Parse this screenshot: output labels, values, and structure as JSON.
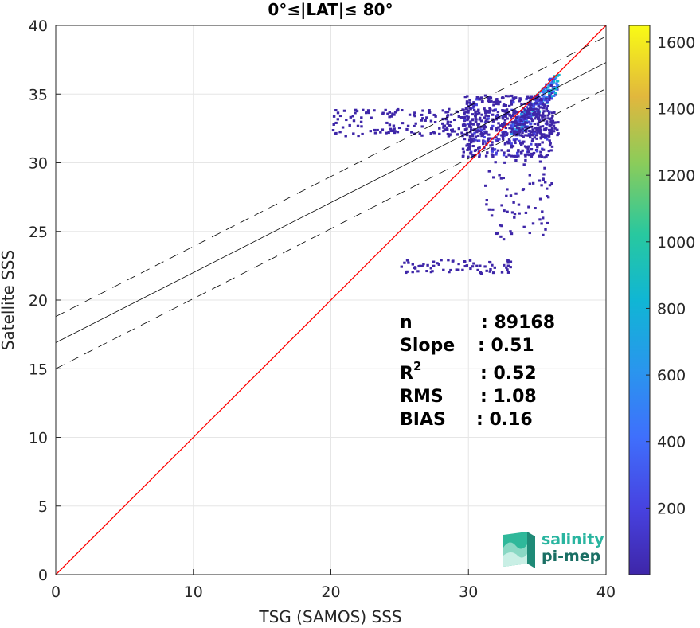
{
  "chart_data": {
    "type": "scatter",
    "title": "0°≤|LAT|≤ 80°",
    "xlabel": "TSG (SAMOS) SSS",
    "ylabel": "Satellite SSS",
    "xlim": [
      0,
      40
    ],
    "ylim": [
      0,
      40
    ],
    "xticks": [
      "0",
      "10",
      "20",
      "30",
      "40"
    ],
    "yticks": [
      "0",
      "5",
      "10",
      "15",
      "20",
      "25",
      "30",
      "35",
      "40"
    ],
    "grid": true,
    "colorbar": {
      "range": [
        0,
        1650
      ],
      "ticks": [
        "200",
        "400",
        "600",
        "800",
        "1000",
        "1200",
        "1400",
        "1600"
      ],
      "colormap": "parula"
    },
    "lines": [
      {
        "kind": "identity",
        "slope": 1,
        "intercept": 0,
        "color": "#ff0000",
        "style": "solid"
      },
      {
        "kind": "regression",
        "slope": 0.51,
        "intercept": 16.9,
        "color": "#000000",
        "style": "solid"
      },
      {
        "kind": "regression-upper",
        "slope": 0.51,
        "intercept": 18.8,
        "color": "#000000",
        "style": "dashed"
      },
      {
        "kind": "regression-lower",
        "slope": 0.51,
        "intercept": 15.0,
        "color": "#000000",
        "style": "dashed"
      }
    ],
    "density_clusters": [
      {
        "x": [
          33,
          36.5
        ],
        "y": [
          32,
          36.5
        ],
        "density": "high"
      },
      {
        "x": [
          29.5,
          36
        ],
        "y": [
          30.5,
          35
        ],
        "density": "medium"
      },
      {
        "x": [
          20,
          36.5
        ],
        "y": [
          32,
          34
        ],
        "density": "low"
      },
      {
        "x": [
          31,
          36
        ],
        "y": [
          24.5,
          30.5
        ],
        "density": "sparse"
      },
      {
        "x": [
          25,
          33
        ],
        "y": [
          22,
          23
        ],
        "density": "sparse"
      }
    ],
    "stats": [
      {
        "label": "n",
        "value": ": 89168"
      },
      {
        "label": "Slope",
        "value": ": 0.51"
      },
      {
        "label": "R",
        "sup": "2",
        "value": ": 0.52"
      },
      {
        "label": "RMS",
        "value": ": 1.08"
      },
      {
        "label": "BIAS",
        "value": ": 0.16"
      }
    ]
  },
  "logo": {
    "line1": "salinity",
    "line2": "pi-mep",
    "color1": "#2ab5a0",
    "color2": "#1a6f64"
  }
}
